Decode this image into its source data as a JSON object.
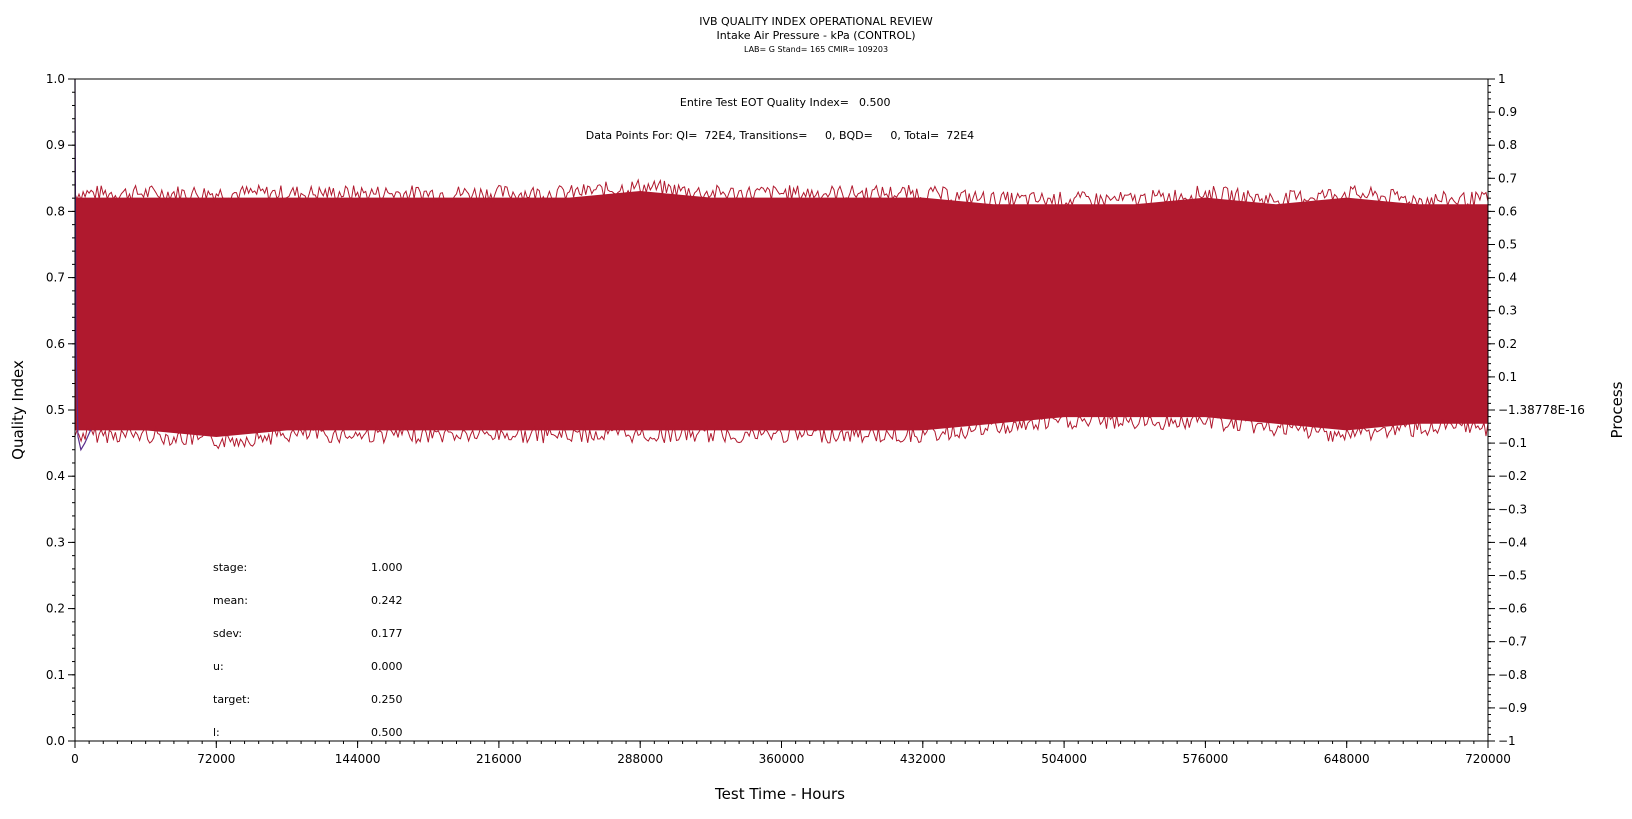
{
  "chart_data": {
    "type": "line",
    "title": "IVB QUALITY INDEX OPERATIONAL REVIEW",
    "subtitle": "Intake Air Pressure - kPa (CONTROL)",
    "subtitle2": "LAB= G Stand= 165 CMIR= 109203",
    "xlabel": "Test Time - Hours",
    "ylabel": "Quality Index",
    "y2label": "Process",
    "xlim": [
      0,
      720000
    ],
    "ylim": [
      0.0,
      1.0
    ],
    "y2lim": [
      -1,
      1
    ],
    "x_ticks": [
      "0",
      "72000",
      "144000",
      "216000",
      "288000",
      "360000",
      "432000",
      "504000",
      "576000",
      "648000",
      "720000"
    ],
    "y_ticks": [
      "0.0",
      "0.1",
      "0.2",
      "0.3",
      "0.4",
      "0.5",
      "0.6",
      "0.7",
      "0.8",
      "0.9",
      "1.0"
    ],
    "y2_ticks": [
      "-1",
      "-0.9",
      "-0.8",
      "-0.7",
      "-0.6",
      "-0.5",
      "-0.4",
      "-0.3",
      "-0.2",
      "-0.1",
      "-1.38778E-16",
      "0.1",
      "0.2",
      "0.3",
      "0.4",
      "0.5",
      "0.6",
      "0.7",
      "0.8",
      "0.9",
      "1"
    ],
    "annotations": {
      "eot_label": "Entire Test EOT Quality Index=",
      "eot_value": "0.500",
      "datapoints": "Data Points For: QI=  72E4, Transitions=     0, BQD=     0, Total=  72E4"
    },
    "stats": [
      {
        "label": "stage:",
        "value": "1.000"
      },
      {
        "label": "mean:",
        "value": "0.242"
      },
      {
        "label": "sdev:",
        "value": "0.177"
      },
      {
        "label": "u:",
        "value": "0.000"
      },
      {
        "label": "target:",
        "value": "0.250"
      },
      {
        "label": "l:",
        "value": "0.500"
      }
    ],
    "series": [
      {
        "color": "#b0192e",
        "band_x": [
          0,
          36000,
          72000,
          108000,
          144000,
          180000,
          216000,
          252000,
          288000,
          324000,
          360000,
          396000,
          432000,
          468000,
          504000,
          540000,
          576000,
          612000,
          648000,
          684000,
          720000
        ],
        "band_upper": [
          0.82,
          0.82,
          0.82,
          0.82,
          0.82,
          0.82,
          0.82,
          0.82,
          0.83,
          0.82,
          0.82,
          0.82,
          0.82,
          0.81,
          0.81,
          0.81,
          0.82,
          0.81,
          0.82,
          0.81,
          0.81
        ],
        "band_lower": [
          0.47,
          0.47,
          0.46,
          0.47,
          0.47,
          0.47,
          0.47,
          0.47,
          0.47,
          0.47,
          0.47,
          0.47,
          0.47,
          0.48,
          0.49,
          0.49,
          0.49,
          0.48,
          0.47,
          0.48,
          0.48
        ]
      },
      {
        "color": "#5a2d8c",
        "x": [
          0,
          500,
          1500,
          3000,
          5000,
          8000
        ],
        "y": [
          1.0,
          0.6,
          0.46,
          0.44,
          0.45,
          0.47
        ]
      }
    ],
    "grid": false,
    "legend": "none"
  }
}
